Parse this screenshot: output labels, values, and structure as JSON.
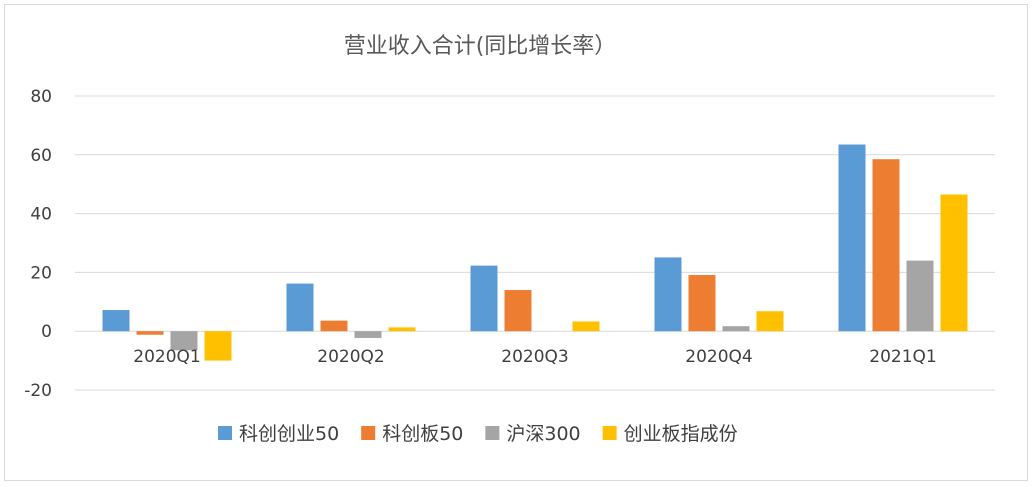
{
  "chart_data": {
    "type": "bar",
    "title": "营业收入合计(同比增长率）",
    "categories": [
      "2020Q1",
      "2020Q2",
      "2020Q3",
      "2020Q4",
      "2021Q1"
    ],
    "series": [
      {
        "name": "科创创业50",
        "color": "#5B9BD5",
        "values": [
          7.2,
          16.2,
          22.3,
          25.1,
          63.5
        ]
      },
      {
        "name": "科创板50",
        "color": "#ED7D31",
        "values": [
          -1.2,
          3.6,
          14.0,
          19.1,
          58.5
        ]
      },
      {
        "name": "沪深300",
        "color": "#A5A5A5",
        "values": [
          -6.5,
          -2.3,
          0,
          1.7,
          24.0
        ]
      },
      {
        "name": "创业板指成份",
        "color": "#FFC000",
        "values": [
          -10.0,
          1.3,
          3.3,
          6.8,
          46.5
        ]
      }
    ],
    "ylim": [
      -20,
      80
    ],
    "yticks": [
      80,
      60,
      40,
      20,
      0,
      -20
    ],
    "grid": true,
    "legend": "bottom"
  }
}
